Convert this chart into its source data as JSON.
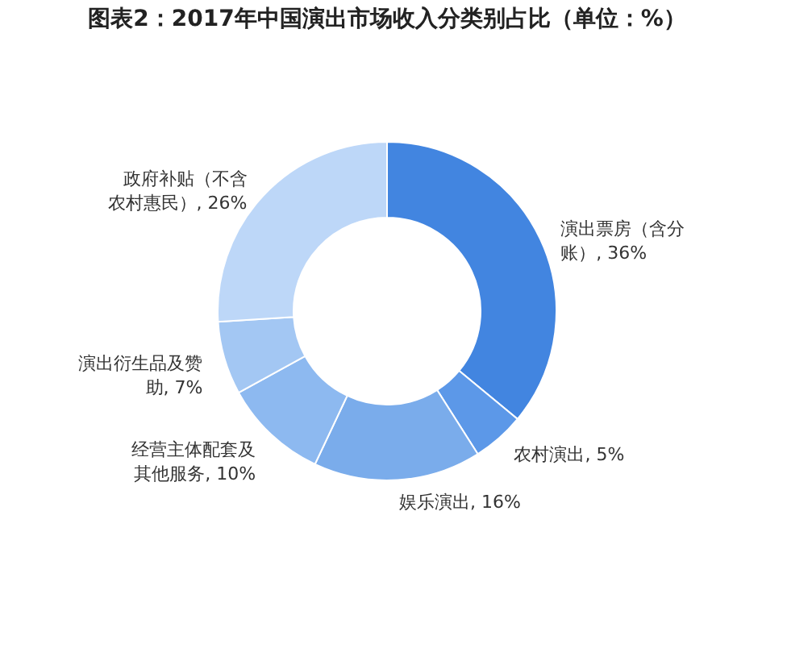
{
  "chart_data": {
    "type": "donut",
    "title": "图表2：2017年中国演出市场收入分类别占比（单位：%）",
    "categories": [
      "演出票房（含分账）",
      "农村演出",
      "娱乐演出",
      "经营主体配套及其他服务",
      "演出衍生品及赞助",
      "政府补贴（不含农村惠民）"
    ],
    "values": [
      36,
      5,
      16,
      10,
      7,
      26
    ],
    "value_labels": [
      "36%",
      "5%",
      "16%",
      "10%",
      "7%",
      "26%"
    ],
    "colors": [
      "#4285e0",
      "#5c98e8",
      "#7aaceb",
      "#8db9f0",
      "#a3c7f3",
      "#bdd7f8"
    ],
    "legend": false
  }
}
